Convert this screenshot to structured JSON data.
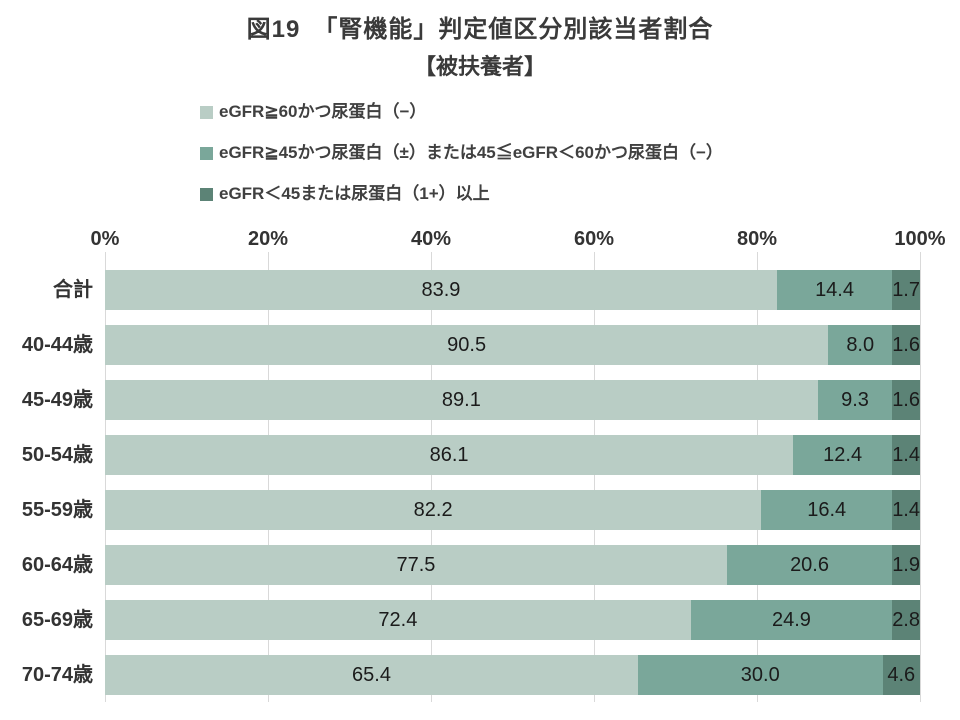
{
  "figure": {
    "title": "図19　「腎機能」判定値区分別該当者割合",
    "subtitle": "【被扶養者】"
  },
  "legend": {
    "items": [
      {
        "label": "eGFR≧60かつ尿蛋白（−）",
        "color": "#b9cdc5"
      },
      {
        "label": "eGFR≧45かつ尿蛋白（±）または45≦eGFR＜60かつ尿蛋白（−）",
        "color": "#7aa79a"
      },
      {
        "label": "eGFR＜45または尿蛋白（1+）以上",
        "color": "#5c8376"
      }
    ]
  },
  "colors": {
    "series_light": "#b9cdc5",
    "series_medium": "#7aa79a",
    "series_dark": "#5c8376",
    "gridline": "#d9d9d9"
  },
  "chart_data": {
    "type": "bar",
    "orientation": "horizontal",
    "stacked": true,
    "title": "図19　「腎機能」判定値区分別該当者割合",
    "subtitle": "【被扶養者】",
    "categories": [
      "合計",
      "40-44歳",
      "45-49歳",
      "50-54歳",
      "55-59歳",
      "60-64歳",
      "65-69歳",
      "70-74歳"
    ],
    "series": [
      {
        "name": "eGFR≧60かつ尿蛋白（−）",
        "color": "#b9cdc5",
        "values": [
          83.9,
          90.5,
          89.1,
          86.1,
          82.2,
          77.5,
          72.4,
          65.4
        ]
      },
      {
        "name": "eGFR≧45かつ尿蛋白（±）または45≦eGFR＜60かつ尿蛋白（−）",
        "color": "#7aa79a",
        "values": [
          14.4,
          8.0,
          9.3,
          12.4,
          16.4,
          20.6,
          24.9,
          30.0
        ]
      },
      {
        "name": "eGFR＜45または尿蛋白（1+）以上",
        "color": "#5c8376",
        "values": [
          1.7,
          1.6,
          1.6,
          1.4,
          1.4,
          1.9,
          2.8,
          4.6
        ]
      }
    ],
    "x_ticks": [
      "0%",
      "20%",
      "40%",
      "60%",
      "80%",
      "100%"
    ],
    "xlim": [
      0,
      100
    ],
    "grid": "vertical",
    "legend_position": "top-left",
    "value_labels": true,
    "value_label_format": "one-decimal"
  }
}
